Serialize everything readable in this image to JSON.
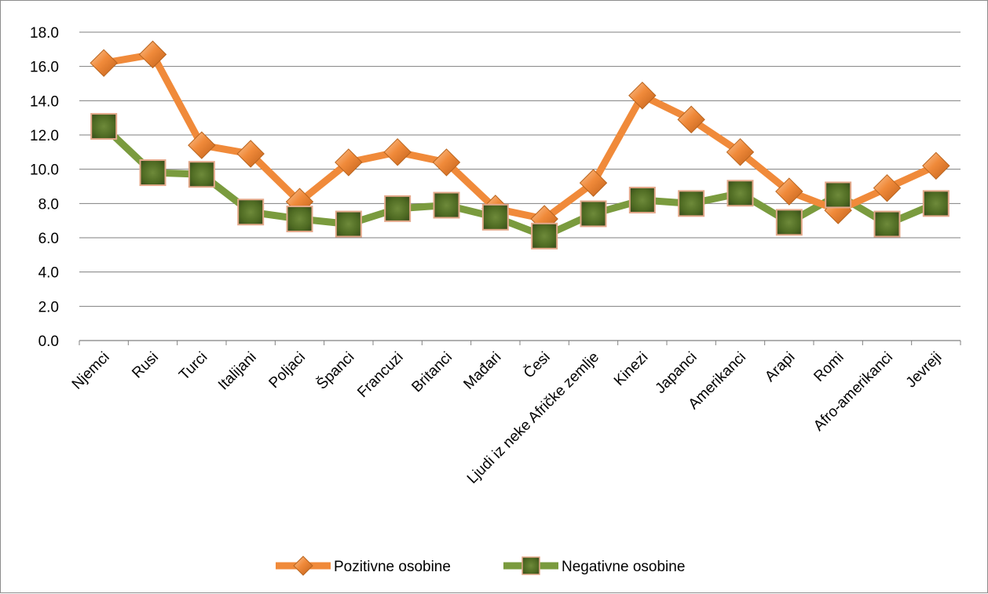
{
  "chart_data": {
    "type": "line",
    "title": "",
    "xlabel": "",
    "ylabel": "",
    "ylim": [
      0,
      18
    ],
    "ytick_step": 2,
    "y_tick_labels": [
      "0.0",
      "2.0",
      "4.0",
      "6.0",
      "8.0",
      "10.0",
      "12.0",
      "14.0",
      "16.0",
      "18.0"
    ],
    "grid": "horizontal",
    "legend_position": "bottom",
    "categories": [
      "Njemci",
      "Rusi",
      "Turci",
      "Italijani",
      "Poljaci",
      "Španci",
      "Francuzi",
      "Britanci",
      "Mađari",
      "Česi",
      "Ljudi iz neke Afričke zemlje",
      "Kinezi",
      "Japanci",
      "Amerikanci",
      "Arapi",
      "Romi",
      "Afro-amerikanci",
      "Jevreji"
    ],
    "series": [
      {
        "name": "Pozitivne osobine",
        "color": "#F08A3A",
        "marker": "diamond",
        "values": [
          16.2,
          16.7,
          11.4,
          10.9,
          8.1,
          10.4,
          11.0,
          10.4,
          7.7,
          7.1,
          9.2,
          14.3,
          12.9,
          11.0,
          8.7,
          7.6,
          8.9,
          10.2
        ]
      },
      {
        "name": "Negativne osobine",
        "color": "#7A9B3E",
        "marker": "square",
        "values": [
          12.5,
          9.8,
          9.7,
          7.5,
          7.1,
          6.8,
          7.7,
          7.9,
          7.2,
          6.1,
          7.4,
          8.2,
          8.0,
          8.6,
          6.9,
          8.5,
          6.8,
          8.0
        ]
      }
    ]
  }
}
